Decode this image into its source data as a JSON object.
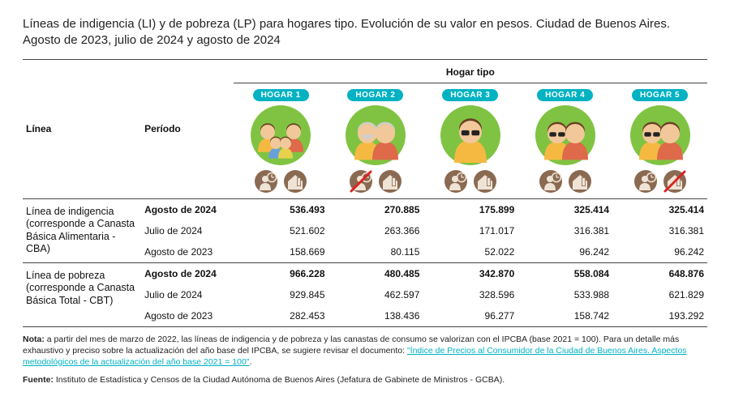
{
  "title": "Líneas de indigencia (LI) y de pobreza (LP) para hogares tipo. Evolución de su valor en pesos. Ciudad de Buenos Aires. Agosto de 2023, julio de 2024 y agosto de 2024",
  "headers": {
    "linea": "Línea",
    "periodo": "Período",
    "hogar_tipo": "Hogar tipo",
    "hogares": [
      "HOGAR 1",
      "HOGAR 2",
      "HOGAR 3",
      "HOGAR 4",
      "HOGAR 5"
    ]
  },
  "groups": [
    {
      "label": "Línea de indigencia (corresponde a Canasta Básica Alimentaria - CBA)",
      "rows": [
        {
          "periodo": "Agosto de 2024",
          "bold": true,
          "values": [
            "536.493",
            "270.885",
            "175.899",
            "325.414",
            "325.414"
          ]
        },
        {
          "periodo": "Julio de 2024",
          "bold": false,
          "values": [
            "521.602",
            "263.366",
            "171.017",
            "316.381",
            "316.381"
          ]
        },
        {
          "periodo": "Agosto de 2023",
          "bold": false,
          "values": [
            "158.669",
            "80.115",
            "52.022",
            "96.242",
            "96.242"
          ]
        }
      ]
    },
    {
      "label": "Línea de pobreza (corresponde a Canasta Básica Total - CBT)",
      "rows": [
        {
          "periodo": "Agosto de 2024",
          "bold": true,
          "values": [
            "966.228",
            "480.485",
            "342.870",
            "558.084",
            "648.876"
          ]
        },
        {
          "periodo": "Julio de 2024",
          "bold": false,
          "values": [
            "929.845",
            "462.597",
            "328.596",
            "533.988",
            "621.829"
          ]
        },
        {
          "periodo": "Agosto de 2023",
          "bold": false,
          "values": [
            "282.453",
            "138.436",
            "96.277",
            "158.742",
            "193.292"
          ]
        }
      ]
    }
  ],
  "note": {
    "label": "Nota:",
    "pre": "a partir del mes de marzo de 2022, las líneas de indigencia y de pobreza y las canastas de consumo se valorizan con el IPCBA (base 2021 = 100). Para un detalle más exhaustivo y preciso sobre la actualización del año base del IPCBA, se sugiere revisar el documento: ",
    "link": "\"Índice de Precios al Consumidor de la Ciudad de Buenos Aires. Aspectos metodológicos de la actualización del año base 2021 = 100\"",
    "post": "."
  },
  "fuente": {
    "label": "Fuente:",
    "text": "Instituto de Estadística y Censos de la Ciudad Autónoma de Buenos Aires (Jefatura de Gabinete de Ministros - GCBA)."
  },
  "style": {
    "accent": "#00b2c2",
    "illus_bg": "#80c342",
    "icon_bg": "#8a6a52",
    "icon_fill": "#efe3d6",
    "strike": "#d22"
  },
  "hogar_illus": [
    {
      "people": 4,
      "elderly": false,
      "work_strike": false,
      "home_strike": false
    },
    {
      "people": 2,
      "elderly": true,
      "work_strike": true,
      "home_strike": false
    },
    {
      "people": 1,
      "elderly": false,
      "work_strike": false,
      "home_strike": false
    },
    {
      "people": 2,
      "elderly": false,
      "work_strike": false,
      "home_strike": false
    },
    {
      "people": 2,
      "elderly": false,
      "work_strike": false,
      "home_strike": true
    }
  ]
}
